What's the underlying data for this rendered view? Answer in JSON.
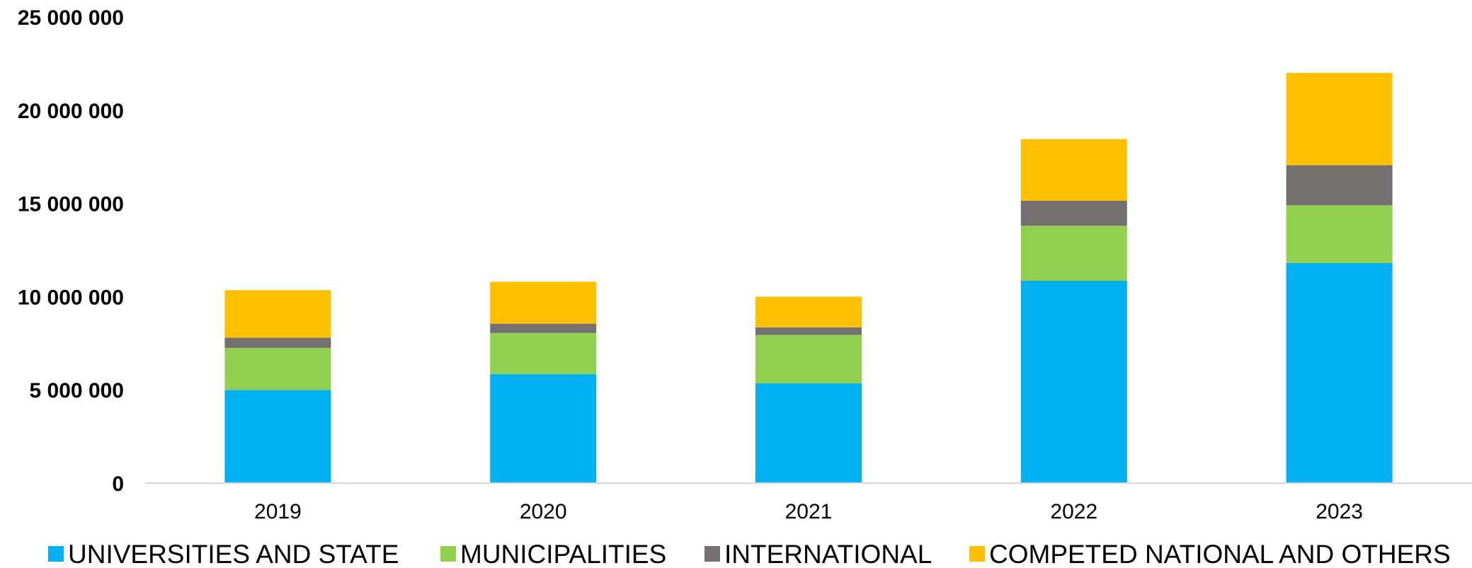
{
  "chart_data": {
    "type": "bar",
    "stacked": true,
    "title": "",
    "xlabel": "",
    "ylabel": "",
    "categories": [
      "2019",
      "2020",
      "2021",
      "2022",
      "2023"
    ],
    "series": [
      {
        "name": "UNIVERSITIES AND STATE",
        "color": "#00B0F0",
        "values": [
          5000000,
          5850000,
          5350000,
          10850000,
          11800000
        ]
      },
      {
        "name": "MUNICIPALITIES",
        "color": "#92D050",
        "values": [
          2250000,
          2200000,
          2600000,
          2950000,
          3100000
        ]
      },
      {
        "name": "INTERNATIONAL",
        "color": "#767171",
        "values": [
          550000,
          500000,
          400000,
          1350000,
          2150000
        ]
      },
      {
        "name": "COMPETED NATIONAL AND OTHERS",
        "color": "#FFC000",
        "values": [
          2550000,
          2250000,
          1650000,
          3300000,
          4950000
        ]
      }
    ],
    "ylim": [
      0,
      25000000
    ],
    "yticks": [
      0,
      5000000,
      10000000,
      15000000,
      20000000,
      25000000
    ],
    "ytick_labels": [
      "0",
      "5 000 000",
      "10 000 000",
      "15 000 000",
      "20 000 000",
      "25 000 000"
    ],
    "grid": false,
    "legend_position": "bottom"
  }
}
